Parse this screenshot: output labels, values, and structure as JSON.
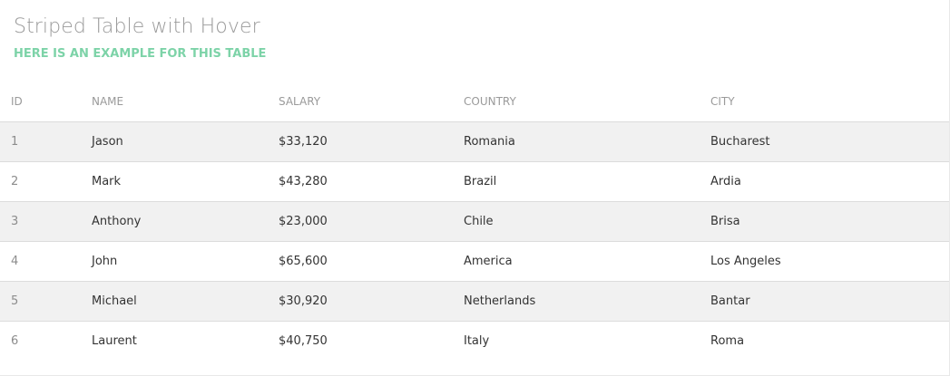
{
  "header": {
    "title": "Striped Table with Hover",
    "subtitle": "HERE IS AN EXAMPLE FOR THIS TABLE"
  },
  "table": {
    "columns": [
      "ID",
      "NAME",
      "SALARY",
      "COUNTRY",
      "CITY"
    ],
    "rows": [
      [
        "1",
        "Jason",
        "$33,120",
        "Romania",
        "Bucharest"
      ],
      [
        "2",
        "Mark",
        "$43,280",
        "Brazil",
        "Ardia"
      ],
      [
        "3",
        "Anthony",
        "$23,000",
        "Chile",
        "Brisa"
      ],
      [
        "4",
        "John",
        "$65,600",
        "America",
        "Los Angeles"
      ],
      [
        "5",
        "Michael",
        "$30,920",
        "Netherlands",
        "Bantar"
      ],
      [
        "6",
        "Laurent",
        "$40,750",
        "Italy",
        "Roma"
      ]
    ]
  },
  "colors": {
    "accent": "#7dd3a8",
    "stripe": "#f1f1f1"
  }
}
